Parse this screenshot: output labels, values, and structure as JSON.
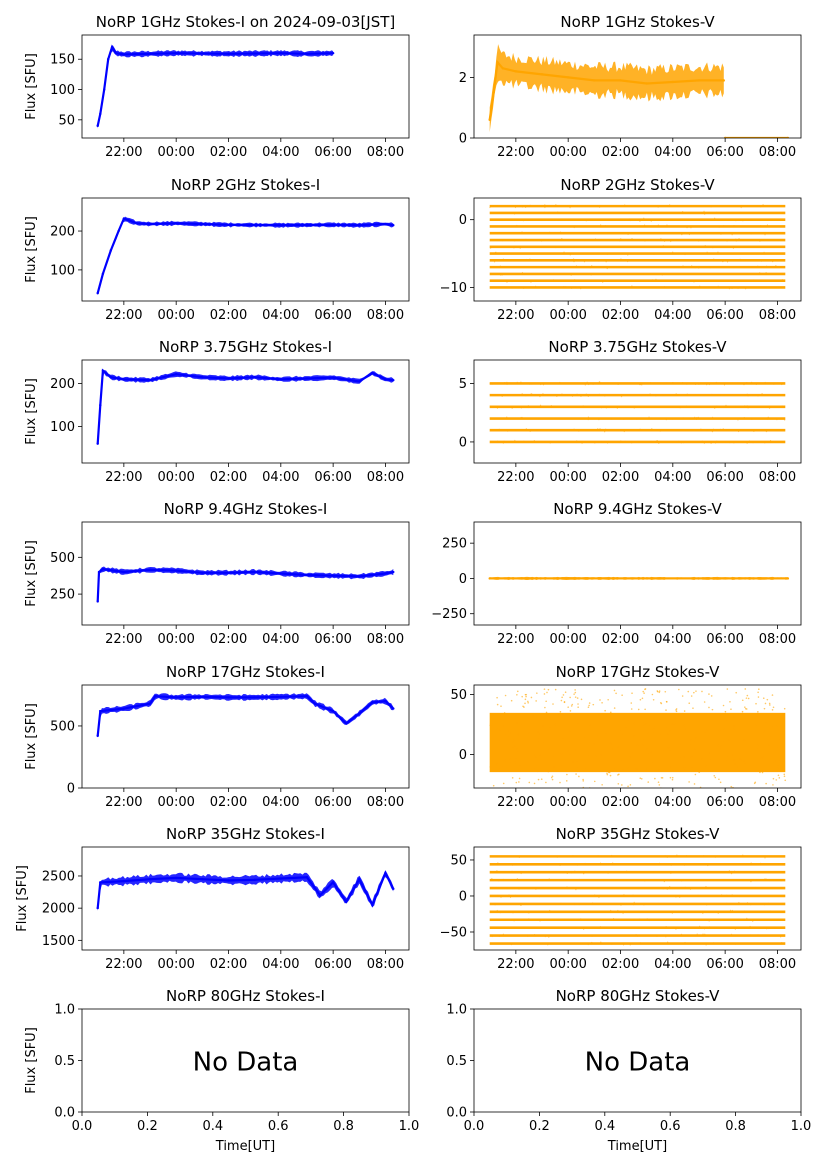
{
  "figure": {
    "ylabel": "Flux [SFU]",
    "xlabel": "Time[UT]",
    "no_data_text": "No Data",
    "time_tick_labels": [
      "22:00",
      "00:00",
      "02:00",
      "04:00",
      "06:00",
      "08:00"
    ],
    "unit_tick_labels": [
      "0.0",
      "0.2",
      "0.4",
      "0.6",
      "0.8",
      "1.0"
    ]
  },
  "colors": {
    "stokes_i": "#0000ff",
    "stokes_v": "#ffa500"
  },
  "chart_data": [
    {
      "type": "line",
      "title": "NoRP 1GHz Stokes-I on 2024-09-03[JST]",
      "ylabel": "Flux [SFU]",
      "series": [
        {
          "name": "Stokes-I",
          "color": "#0000ff",
          "x": [
            21.0,
            21.1,
            21.25,
            21.4,
            21.55,
            21.7,
            22.0,
            23.0,
            24.0,
            26.0,
            28.0,
            29.0,
            30.0
          ],
          "y": [
            40,
            60,
            100,
            150,
            170,
            160,
            158,
            159,
            160,
            159,
            160,
            159,
            160
          ],
          "spread": 4
        }
      ],
      "xlim": [
        20.4,
        32.9
      ],
      "ylim": [
        20,
        190
      ],
      "yticks": [
        50,
        100,
        150
      ],
      "ytick_labels": [
        "50",
        "100",
        "150"
      ],
      "xaxis": "time"
    },
    {
      "type": "line",
      "title": "NoRP 1GHz Stokes-V",
      "series": [
        {
          "name": "Stokes-V",
          "color": "#ffa500",
          "x": [
            21.0,
            21.15,
            21.3,
            21.5,
            22.0,
            23.0,
            24.0,
            25.0,
            26.0,
            27.0,
            28.0,
            29.0,
            29.95
          ],
          "y": [
            0.6,
            1.5,
            2.5,
            2.3,
            2.2,
            2.1,
            2.0,
            1.9,
            1.9,
            1.8,
            1.85,
            1.9,
            1.9
          ],
          "spread": 0.45
        },
        {
          "name": "Stokes-V tail",
          "color": "#ffa500",
          "x": [
            30.0,
            32.4
          ],
          "y": [
            0.0,
            0.0
          ],
          "spread": 0.02
        }
      ],
      "xlim": [
        20.4,
        32.9
      ],
      "ylim": [
        0,
        3.4
      ],
      "yticks": [
        0,
        2
      ],
      "ytick_labels": [
        "0",
        "2"
      ],
      "xaxis": "time"
    },
    {
      "type": "line",
      "title": "NoRP 2GHz Stokes-I",
      "ylabel": "Flux [SFU]",
      "series": [
        {
          "name": "Stokes-I",
          "color": "#0000ff",
          "x": [
            21.0,
            21.2,
            21.5,
            21.8,
            22.0,
            22.5,
            23.0,
            24.0,
            26.0,
            28.0,
            30.0,
            31.0,
            32.0,
            32.3
          ],
          "y": [
            40,
            90,
            150,
            200,
            232,
            220,
            218,
            220,
            216,
            215,
            216,
            215,
            218,
            215
          ],
          "spread": 5
        }
      ],
      "xlim": [
        20.4,
        32.9
      ],
      "ylim": [
        20,
        285
      ],
      "yticks": [
        100,
        200
      ],
      "ytick_labels": [
        "100",
        "200"
      ],
      "xaxis": "time"
    },
    {
      "type": "scatter",
      "title": "NoRP 2GHz Stokes-V",
      "series": [
        {
          "name": "Stokes-V",
          "color": "#ffa500",
          "x": [
            21.0,
            32.3
          ],
          "levels": [
            2,
            1,
            0,
            -1,
            -2,
            -3,
            -4,
            -5,
            -6,
            -7,
            -8,
            -9,
            -10
          ],
          "density": "bands"
        }
      ],
      "xlim": [
        20.4,
        32.9
      ],
      "ylim": [
        -12,
        3.2
      ],
      "yticks": [
        -10,
        0
      ],
      "ytick_labels": [
        "−10",
        "0"
      ],
      "xaxis": "time"
    },
    {
      "type": "line",
      "title": "NoRP 3.75GHz Stokes-I",
      "ylabel": "Flux [SFU]",
      "series": [
        {
          "name": "Stokes-I",
          "color": "#0000ff",
          "x": [
            21.0,
            21.1,
            21.2,
            21.5,
            22.0,
            23.0,
            24.0,
            25.0,
            26.0,
            27.0,
            28.0,
            29.0,
            30.0,
            31.0,
            31.5,
            32.0,
            32.3
          ],
          "y": [
            60,
            150,
            230,
            215,
            210,
            208,
            222,
            215,
            212,
            215,
            210,
            212,
            214,
            205,
            225,
            210,
            208
          ],
          "spread": 5
        }
      ],
      "xlim": [
        20.4,
        32.9
      ],
      "ylim": [
        15,
        255
      ],
      "yticks": [
        100,
        200
      ],
      "ytick_labels": [
        "100",
        "200"
      ],
      "xaxis": "time"
    },
    {
      "type": "scatter",
      "title": "NoRP 3.75GHz Stokes-V",
      "series": [
        {
          "name": "Stokes-V",
          "color": "#ffa500",
          "x": [
            21.0,
            32.3
          ],
          "levels": [
            5,
            4,
            3,
            2,
            1,
            0
          ],
          "density": "bands"
        }
      ],
      "xlim": [
        20.4,
        32.9
      ],
      "ylim": [
        -1.8,
        7
      ],
      "yticks": [
        0,
        5
      ],
      "ytick_labels": [
        "0",
        "5"
      ],
      "xaxis": "time"
    },
    {
      "type": "line",
      "title": "NoRP 9.4GHz Stokes-I",
      "ylabel": "Flux [SFU]",
      "series": [
        {
          "name": "Stokes-I",
          "color": "#0000ff",
          "x": [
            21.0,
            21.05,
            21.2,
            22.0,
            23.0,
            24.0,
            25.0,
            26.0,
            27.0,
            28.0,
            29.0,
            30.0,
            31.0,
            32.0,
            32.3
          ],
          "y": [
            200,
            400,
            420,
            400,
            415,
            410,
            395,
            395,
            400,
            390,
            380,
            375,
            370,
            390,
            400
          ],
          "spread": 15
        }
      ],
      "xlim": [
        20.4,
        32.9
      ],
      "ylim": [
        40,
        740
      ],
      "yticks": [
        250,
        500
      ],
      "ytick_labels": [
        "250",
        "500"
      ],
      "xaxis": "time"
    },
    {
      "type": "line",
      "title": "NoRP 9.4GHz Stokes-V",
      "series": [
        {
          "name": "Stokes-V",
          "color": "#ffa500",
          "x": [
            21.0,
            24.0,
            27.0,
            30.0,
            32.4
          ],
          "y": [
            0,
            0,
            0,
            0,
            0
          ],
          "spread": 8
        }
      ],
      "xlim": [
        20.4,
        32.9
      ],
      "ylim": [
        -330,
        400
      ],
      "yticks": [
        -250,
        0,
        250
      ],
      "ytick_labels": [
        "−250",
        "0",
        "250"
      ],
      "xaxis": "time"
    },
    {
      "type": "line",
      "title": "NoRP 17GHz Stokes-I",
      "ylabel": "Flux [SFU]",
      "series": [
        {
          "name": "Stokes-I",
          "color": "#0000ff",
          "x": [
            21.0,
            21.1,
            22.0,
            23.0,
            23.2,
            24.0,
            25.0,
            26.0,
            27.0,
            28.0,
            29.0,
            29.3,
            30.0,
            30.5,
            31.0,
            31.5,
            32.0,
            32.3
          ],
          "y": [
            420,
            620,
            640,
            680,
            740,
            730,
            735,
            730,
            730,
            735,
            740,
            680,
            620,
            520,
            600,
            690,
            700,
            640
          ],
          "spread": 20
        }
      ],
      "xlim": [
        20.4,
        32.9
      ],
      "ylim": [
        0,
        830
      ],
      "yticks": [
        0,
        500
      ],
      "ytick_labels": [
        "0",
        "500"
      ],
      "xaxis": "time"
    },
    {
      "type": "scatter",
      "title": "NoRP 17GHz Stokes-V",
      "series": [
        {
          "name": "Stokes-V",
          "color": "#ffa500",
          "x": [
            21.0,
            32.3
          ],
          "y": [
            10,
            10
          ],
          "spread": 45,
          "density": "dense"
        }
      ],
      "xlim": [
        20.4,
        32.9
      ],
      "ylim": [
        -28,
        58
      ],
      "yticks": [
        0,
        50
      ],
      "ytick_labels": [
        "0",
        "50"
      ],
      "xaxis": "time"
    },
    {
      "type": "line",
      "title": "NoRP 35GHz Stokes-I",
      "ylabel": "Flux [SFU]",
      "series": [
        {
          "name": "Stokes-I",
          "color": "#0000ff",
          "x": [
            21.0,
            21.1,
            22.0,
            23.0,
            24.0,
            25.0,
            26.0,
            27.0,
            28.0,
            29.0,
            29.5,
            30.0,
            30.5,
            31.0,
            31.5,
            32.0,
            32.3
          ],
          "y": [
            2000,
            2400,
            2420,
            2450,
            2470,
            2450,
            2430,
            2440,
            2460,
            2480,
            2200,
            2400,
            2100,
            2450,
            2050,
            2550,
            2300
          ],
          "spread": 60
        }
      ],
      "xlim": [
        20.4,
        32.9
      ],
      "ylim": [
        1350,
        2950
      ],
      "yticks": [
        1500,
        2000,
        2500
      ],
      "ytick_labels": [
        "1500",
        "2000",
        "2500"
      ],
      "xaxis": "time"
    },
    {
      "type": "scatter",
      "title": "NoRP 35GHz Stokes-V",
      "series": [
        {
          "name": "Stokes-V",
          "color": "#ffa500",
          "x": [
            21.0,
            32.3
          ],
          "levels": [
            55,
            44,
            33,
            22,
            11,
            0,
            -11,
            -22,
            -33,
            -44,
            -55,
            -66
          ],
          "density": "bands"
        }
      ],
      "xlim": [
        20.4,
        32.9
      ],
      "ylim": [
        -75,
        68
      ],
      "yticks": [
        -50,
        0,
        50
      ],
      "ytick_labels": [
        "−50",
        "0",
        "50"
      ],
      "xaxis": "time"
    },
    {
      "type": "table",
      "title": "NoRP 80GHz Stokes-I",
      "ylabel": "Flux [SFU]",
      "xlabel": "Time[UT]",
      "series": [],
      "annotation": "No Data",
      "xlim": [
        0,
        1
      ],
      "ylim": [
        0,
        1
      ],
      "yticks": [
        0,
        0.5,
        1
      ],
      "ytick_labels": [
        "0.0",
        "0.5",
        "1.0"
      ],
      "xaxis": "unit"
    },
    {
      "type": "table",
      "title": "NoRP 80GHz Stokes-V",
      "xlabel": "Time[UT]",
      "series": [],
      "annotation": "No Data",
      "xlim": [
        0,
        1
      ],
      "ylim": [
        0,
        1
      ],
      "yticks": [
        0,
        0.5,
        1
      ],
      "ytick_labels": [
        "0.0",
        "0.5",
        "1.0"
      ],
      "xaxis": "unit"
    }
  ]
}
